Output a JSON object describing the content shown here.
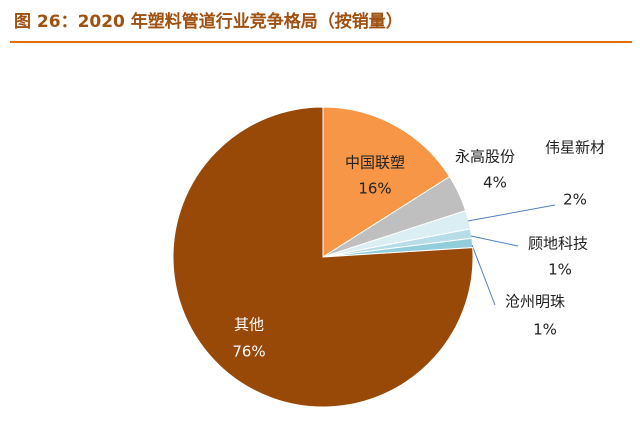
{
  "chart_data": {
    "type": "pie",
    "title": "图 26：2020 年塑料管道行业竞争格局（按销量）",
    "categories": [
      "中国联塑",
      "永高股份",
      "伟星新材",
      "顾地科技",
      "沧州明珠",
      "其他"
    ],
    "values": [
      16,
      4,
      2,
      1,
      1,
      76
    ],
    "value_labels": [
      "16%",
      "4%",
      "2%",
      "1%",
      "1%",
      "76%"
    ],
    "colors": [
      "#f79646",
      "#bfbfbf",
      "#daeef3",
      "#b7dde8",
      "#92cddc",
      "#984807"
    ]
  }
}
